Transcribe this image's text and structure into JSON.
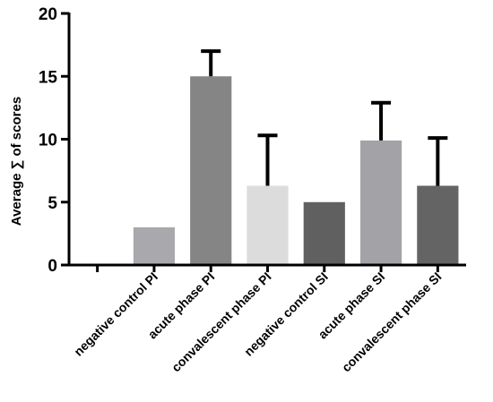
{
  "chart_data": {
    "type": "bar",
    "title": "",
    "xlabel": "",
    "ylabel": "Average ∑ of scores",
    "ylim": [
      0,
      20
    ],
    "yticks": [
      "0",
      "5",
      "10",
      "15",
      "20"
    ],
    "categories": [
      "",
      "negative control PI",
      "acute phase PI",
      "convalescent phase PI",
      "negative control SI",
      "acute phase SI",
      "convalescent phase SI"
    ],
    "values": [
      0,
      3.0,
      15.0,
      6.3,
      5.0,
      9.9,
      6.3
    ],
    "error_upper": [
      0,
      0,
      2.0,
      4.0,
      0,
      3.0,
      3.8
    ],
    "colors": [
      "#ffffff",
      "#a9a9ad",
      "#858585",
      "#dcdcdc",
      "#606060",
      "#a3a3a7",
      "#646464"
    ],
    "grid": false,
    "legend": "none"
  }
}
